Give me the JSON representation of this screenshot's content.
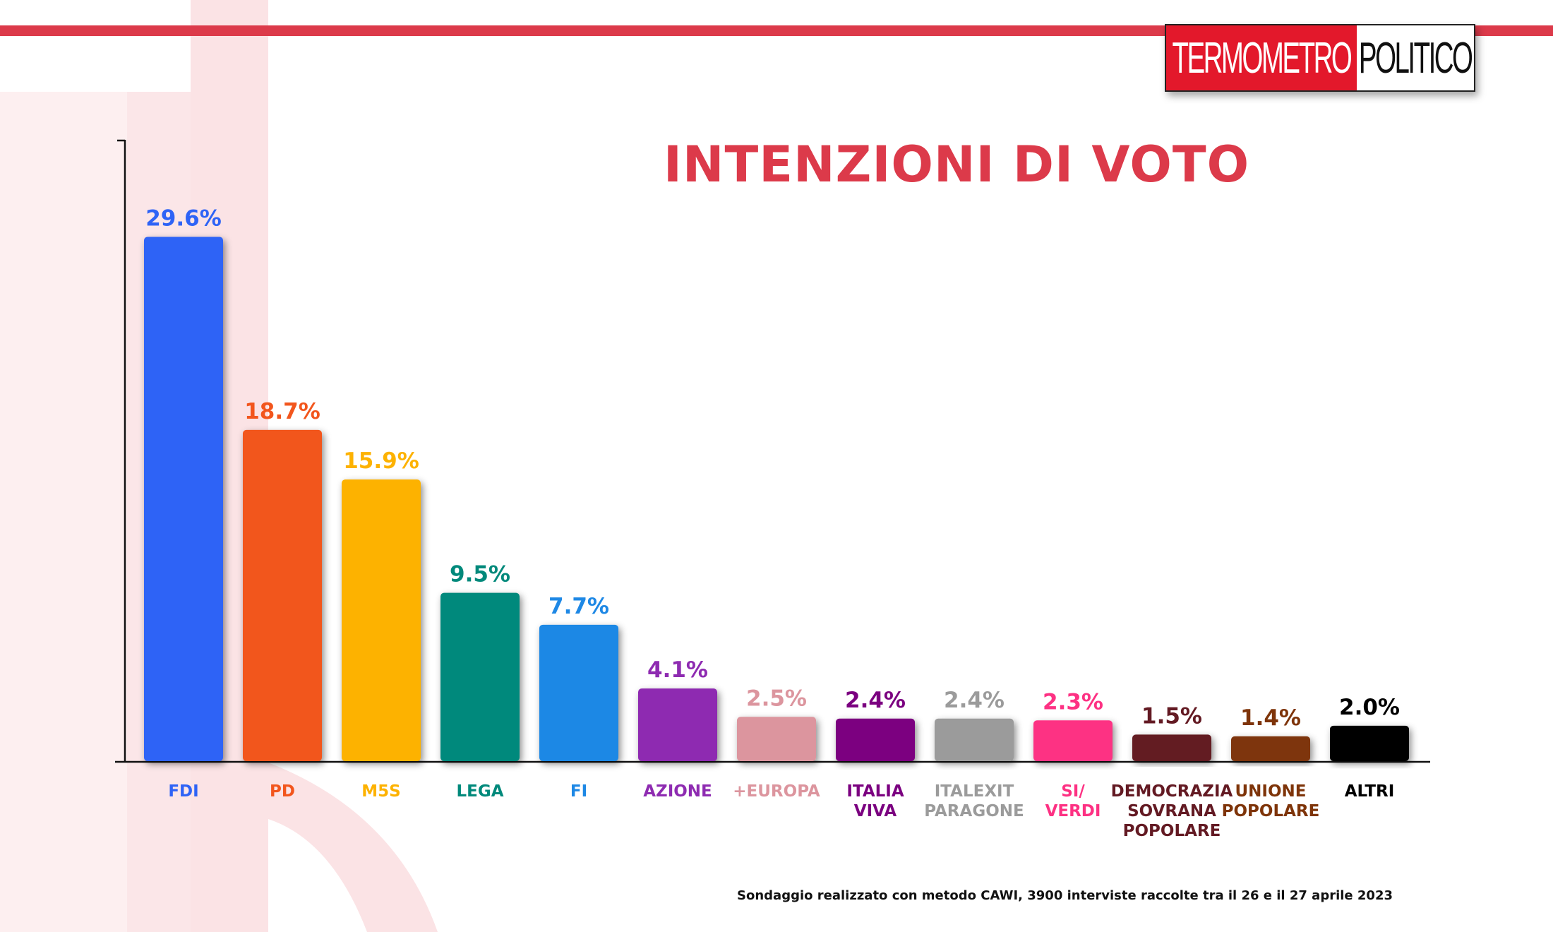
{
  "header": {
    "logo_left": "TERMOMETRO",
    "logo_right": "POLITICO",
    "title": "INTENZIONI DI VOTO"
  },
  "footnote": "Sondaggio realizzato con metodo CAWI, 3900 interviste raccolte tra il 26 e il 27 aprile 2023",
  "colors": {
    "accent": "#dc3a4a",
    "logo_red": "#e3182b"
  },
  "chart_data": {
    "type": "bar",
    "title": "INTENZIONI DI VOTO",
    "xlabel": "",
    "ylabel": "",
    "ylim": [
      0,
      35
    ],
    "grid": false,
    "legend": "none",
    "categories": [
      "FDI",
      "PD",
      "M5S",
      "LEGA",
      "FI",
      "AZIONE",
      "+EUROPA",
      "ITALIA\nVIVA",
      "ITALEXIT\nPARAGONE",
      "SI/\nVERDI",
      "DEMOCRAZIA\nSOVRANA\nPOPOLARE",
      "UNIONE\nPOPOLARE",
      "ALTRI"
    ],
    "values": [
      29.6,
      18.7,
      15.9,
      9.5,
      7.7,
      4.1,
      2.5,
      2.4,
      2.4,
      2.3,
      1.5,
      1.4,
      2.0
    ],
    "value_labels": [
      "29.6%",
      "18.7%",
      "15.9%",
      "9.5%",
      "7.7%",
      "4.1%",
      "2.5%",
      "2.4%",
      "2.4%",
      "2.3%",
      "1.5%",
      "1.4%",
      "2.0%"
    ],
    "colors": [
      "#2e63f6",
      "#f2561d",
      "#fdb201",
      "#01897b",
      "#1e88e5",
      "#8e2bb1",
      "#dc959e",
      "#7b0080",
      "#9b9b9b",
      "#fd3183",
      "#631a23",
      "#7e3409",
      "#000000"
    ],
    "label_colors": [
      "#2e63f6",
      "#f2561d",
      "#fdb201",
      "#01897b",
      "#1e88e5",
      "#8e2bb1",
      "#dc959e",
      "#7b0080",
      "#9b9b9b",
      "#fd3183",
      "#631a23",
      "#7e3409",
      "#000000"
    ]
  }
}
